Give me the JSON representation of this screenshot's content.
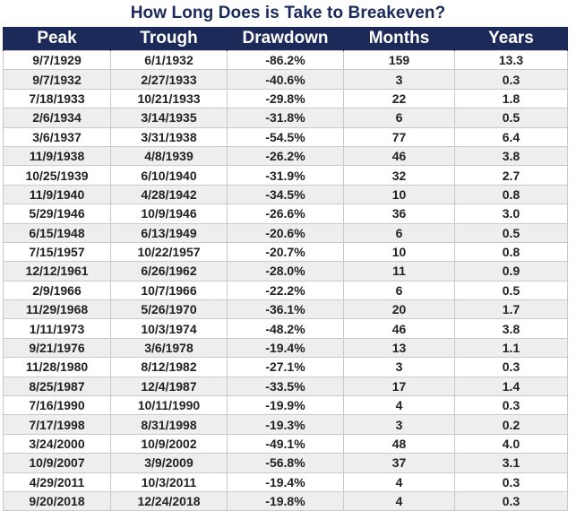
{
  "title": "How Long Does is Take to Breakeven?",
  "colors": {
    "header_background": "#1c2a5a",
    "header_text": "#ffffff",
    "title_text": "#1a2a5c",
    "row_alt": "#eeeeee"
  },
  "chart_data": {
    "type": "table",
    "title": "How Long Does is Take to Breakeven?",
    "columns": [
      "Peak",
      "Trough",
      "Drawdown",
      "Months",
      "Years"
    ],
    "rows": [
      [
        "9/7/1929",
        "6/1/1932",
        "-86.2%",
        "159",
        "13.3"
      ],
      [
        "9/7/1932",
        "2/27/1933",
        "-40.6%",
        "3",
        "0.3"
      ],
      [
        "7/18/1933",
        "10/21/1933",
        "-29.8%",
        "22",
        "1.8"
      ],
      [
        "2/6/1934",
        "3/14/1935",
        "-31.8%",
        "6",
        "0.5"
      ],
      [
        "3/6/1937",
        "3/31/1938",
        "-54.5%",
        "77",
        "6.4"
      ],
      [
        "11/9/1938",
        "4/8/1939",
        "-26.2%",
        "46",
        "3.8"
      ],
      [
        "10/25/1939",
        "6/10/1940",
        "-31.9%",
        "32",
        "2.7"
      ],
      [
        "11/9/1940",
        "4/28/1942",
        "-34.5%",
        "10",
        "0.8"
      ],
      [
        "5/29/1946",
        "10/9/1946",
        "-26.6%",
        "36",
        "3.0"
      ],
      [
        "6/15/1948",
        "6/13/1949",
        "-20.6%",
        "6",
        "0.5"
      ],
      [
        "7/15/1957",
        "10/22/1957",
        "-20.7%",
        "10",
        "0.8"
      ],
      [
        "12/12/1961",
        "6/26/1962",
        "-28.0%",
        "11",
        "0.9"
      ],
      [
        "2/9/1966",
        "10/7/1966",
        "-22.2%",
        "6",
        "0.5"
      ],
      [
        "11/29/1968",
        "5/26/1970",
        "-36.1%",
        "20",
        "1.7"
      ],
      [
        "1/11/1973",
        "10/3/1974",
        "-48.2%",
        "46",
        "3.8"
      ],
      [
        "9/21/1976",
        "3/6/1978",
        "-19.4%",
        "13",
        "1.1"
      ],
      [
        "11/28/1980",
        "8/12/1982",
        "-27.1%",
        "3",
        "0.3"
      ],
      [
        "8/25/1987",
        "12/4/1987",
        "-33.5%",
        "17",
        "1.4"
      ],
      [
        "7/16/1990",
        "10/11/1990",
        "-19.9%",
        "4",
        "0.3"
      ],
      [
        "7/17/1998",
        "8/31/1998",
        "-19.3%",
        "3",
        "0.2"
      ],
      [
        "3/24/2000",
        "10/9/2002",
        "-49.1%",
        "48",
        "4.0"
      ],
      [
        "10/9/2007",
        "3/9/2009",
        "-56.8%",
        "37",
        "3.1"
      ],
      [
        "4/29/2011",
        "10/3/2011",
        "-19.4%",
        "4",
        "0.3"
      ],
      [
        "9/20/2018",
        "12/24/2018",
        "-19.8%",
        "4",
        "0.3"
      ]
    ]
  }
}
